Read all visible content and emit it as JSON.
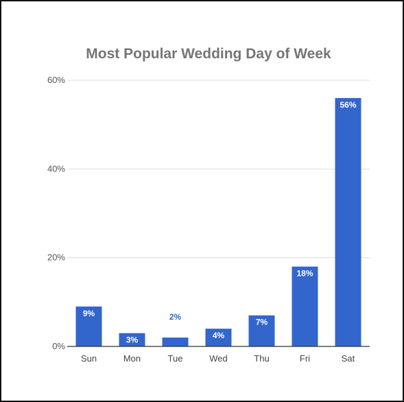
{
  "chart_data": {
    "type": "bar",
    "title": "Most Popular Wedding Day of Week",
    "categories": [
      "Sun",
      "Mon",
      "Tue",
      "Wed",
      "Thu",
      "Fri",
      "Sat"
    ],
    "values": [
      9,
      3,
      2,
      4,
      7,
      18,
      56
    ],
    "data_labels": [
      "9%",
      "3%",
      "2%",
      "4%",
      "7%",
      "18%",
      "56%"
    ],
    "y_ticks": [
      0,
      20,
      40,
      60
    ],
    "y_tick_labels": [
      "0%",
      "20%",
      "40%",
      "60%"
    ],
    "ylim": [
      0,
      60
    ],
    "grid": true,
    "legend": "none",
    "colors": {
      "bar": "#3366cc",
      "label_inside": "#ffffff",
      "label_outside": "#3366cc",
      "grid": "#dddddd",
      "axis": "#333333"
    }
  }
}
